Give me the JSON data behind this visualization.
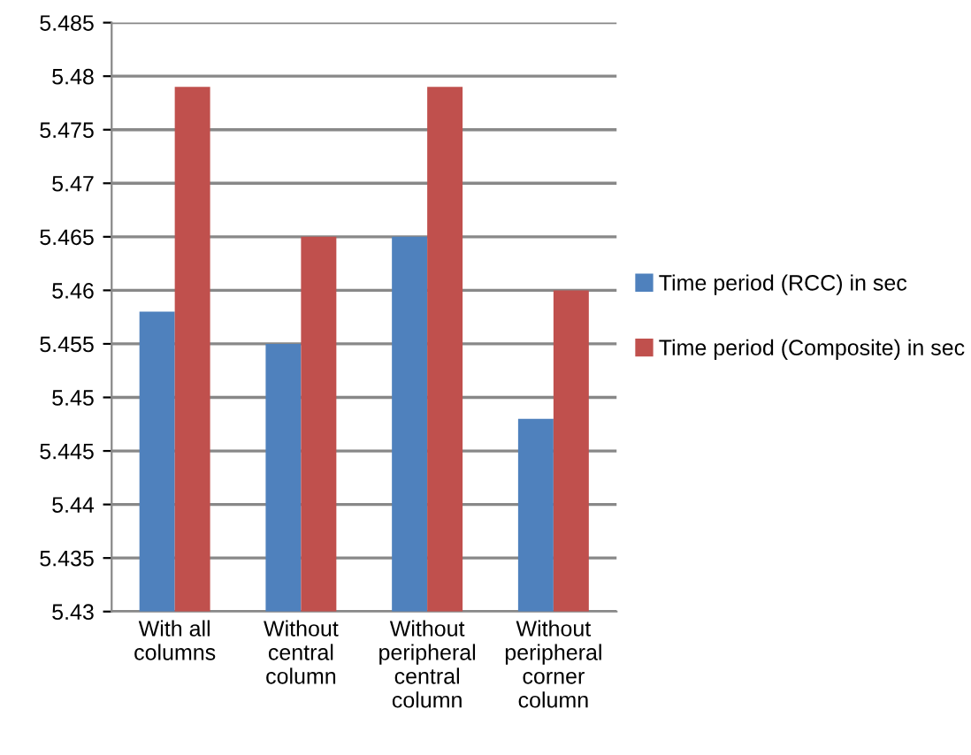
{
  "chart_data": {
    "type": "bar",
    "categories": [
      "With all\ncolumns",
      "Without\ncentral\ncolumn",
      "Without\nperipheral\ncentral\ncolumn",
      "Without\nperipheral\ncorner\ncolumn"
    ],
    "series": [
      {
        "name": "Time period (RCC) in sec",
        "color": "#4f81bd",
        "values": [
          5.458,
          5.455,
          5.465,
          5.448
        ]
      },
      {
        "name": "Time period (Composite) in sec",
        "color": "#c0504d",
        "values": [
          5.479,
          5.465,
          5.479,
          5.46
        ]
      }
    ],
    "ylim": [
      5.43,
      5.485
    ],
    "yticks": [
      5.43,
      5.435,
      5.44,
      5.445,
      5.45,
      5.455,
      5.46,
      5.465,
      5.47,
      5.475,
      5.48,
      5.485
    ],
    "grid": "y",
    "legend": "right"
  }
}
